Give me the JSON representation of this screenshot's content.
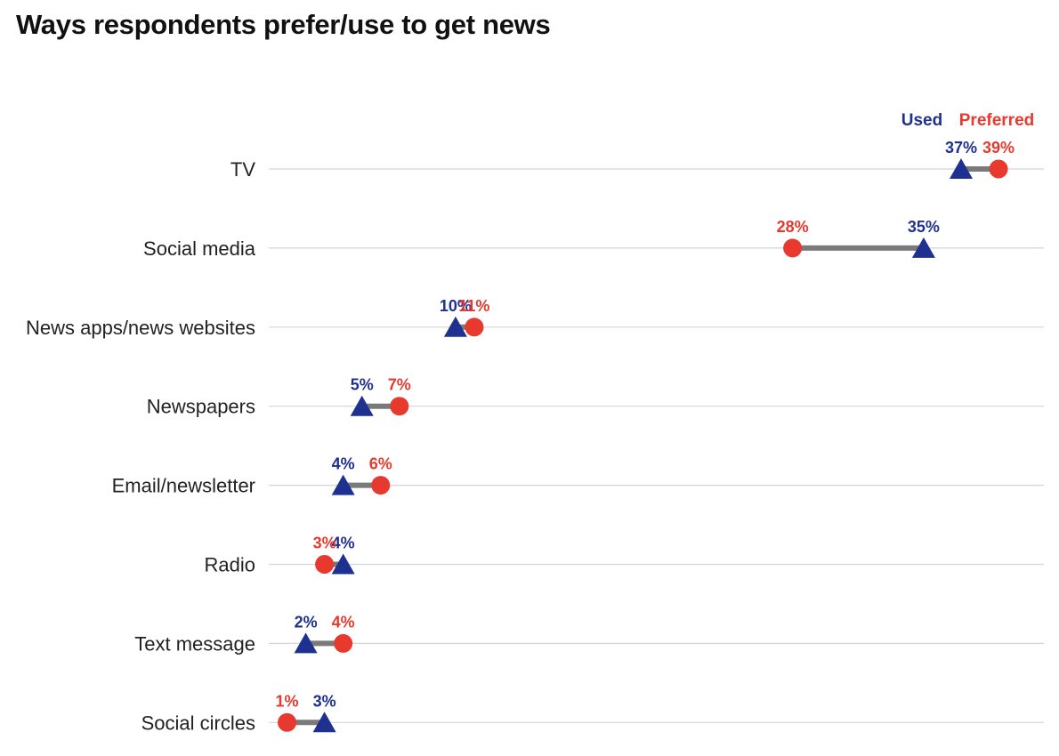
{
  "chart_data": {
    "type": "dumbbell",
    "title": "Ways respondents prefer/use to get news",
    "categories": [
      "TV",
      "Social media",
      "News apps/news websites",
      "Newspapers",
      "Email/newsletter",
      "Radio",
      "Text message",
      "Social circles"
    ],
    "series": [
      {
        "name": "Used",
        "marker": "triangle",
        "color": "#1f3190",
        "values": [
          37,
          35,
          10,
          5,
          4,
          4,
          2,
          3
        ]
      },
      {
        "name": "Preferred",
        "marker": "circle",
        "color": "#e8392e",
        "values": [
          39,
          28,
          11,
          7,
          6,
          3,
          4,
          1
        ]
      }
    ],
    "value_labels": {
      "Used": [
        "37%",
        "35%",
        "10%",
        "5%",
        "4%",
        "4%",
        "2%",
        "3%"
      ],
      "Preferred": [
        "39%",
        "28%",
        "11%",
        "7%",
        "6%",
        "3%",
        "4%",
        "1%"
      ]
    },
    "legend": "top-right",
    "grid": "horizontal",
    "connector_color": "#7a7a7a",
    "gridline_color": "#d4d4d4"
  }
}
